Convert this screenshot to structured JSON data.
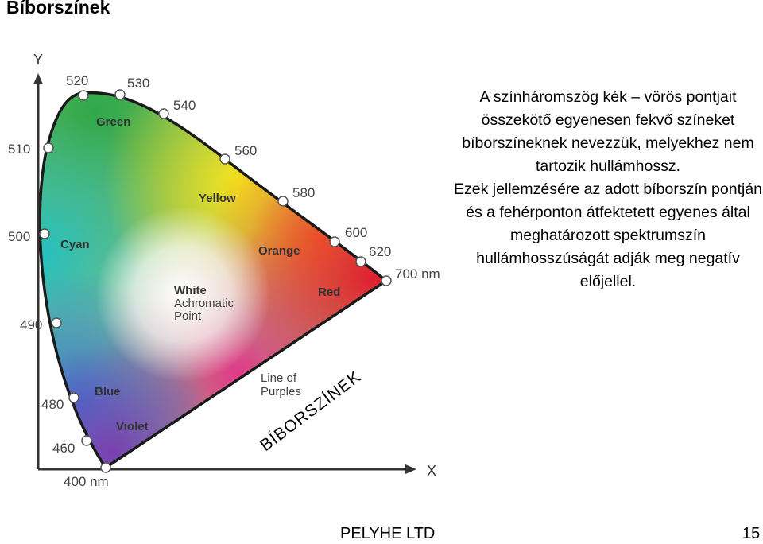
{
  "title": "Bíborszínek",
  "description": [
    "A színháromszög kék – vörös pontjait összekötő egyenesen fekvő színeket bíborszíneknek nevezzük, melyekhez nem tartozik hullámhossz.",
    "Ezek jellemzésére az adott bíborszín pontján és a fehérponton átfektetett egyenes által meghatározott spektrumszín hullámhosszúságát adják meg negatív előjellel."
  ],
  "diagram": {
    "axis_y": "Y",
    "axis_x": "X",
    "wavelengths": {
      "w520": "520",
      "w530": "530",
      "w540": "540",
      "w510": "510",
      "w560": "560",
      "w580": "580",
      "w500": "500",
      "w600": "600",
      "w620": "620",
      "w700": "700 nm",
      "w490": "490",
      "w480": "480",
      "w460": "460",
      "w400": "400 nm"
    },
    "regions": {
      "green": "Green",
      "yellow": "Yellow",
      "cyan": "Cyan",
      "orange": "Orange",
      "red": "Red",
      "blue": "Blue",
      "violet": "Violet",
      "white_1": "White",
      "white_2": "Achromatic",
      "white_3": "Point",
      "purples_1": "Line of",
      "purples_2": "Purples"
    },
    "annotation": "BÍBORSZÍNEK"
  },
  "footer": {
    "left": "PELYHE LTD",
    "right": "15"
  },
  "colors": {
    "green": "#2db04a",
    "yellow": "#f2e21c",
    "orange": "#f47d26",
    "red": "#e02a31",
    "blue": "#3b7fd0",
    "violet": "#8c4aa6",
    "cyan": "#3cc0b8",
    "magenta": "#e0407a"
  }
}
